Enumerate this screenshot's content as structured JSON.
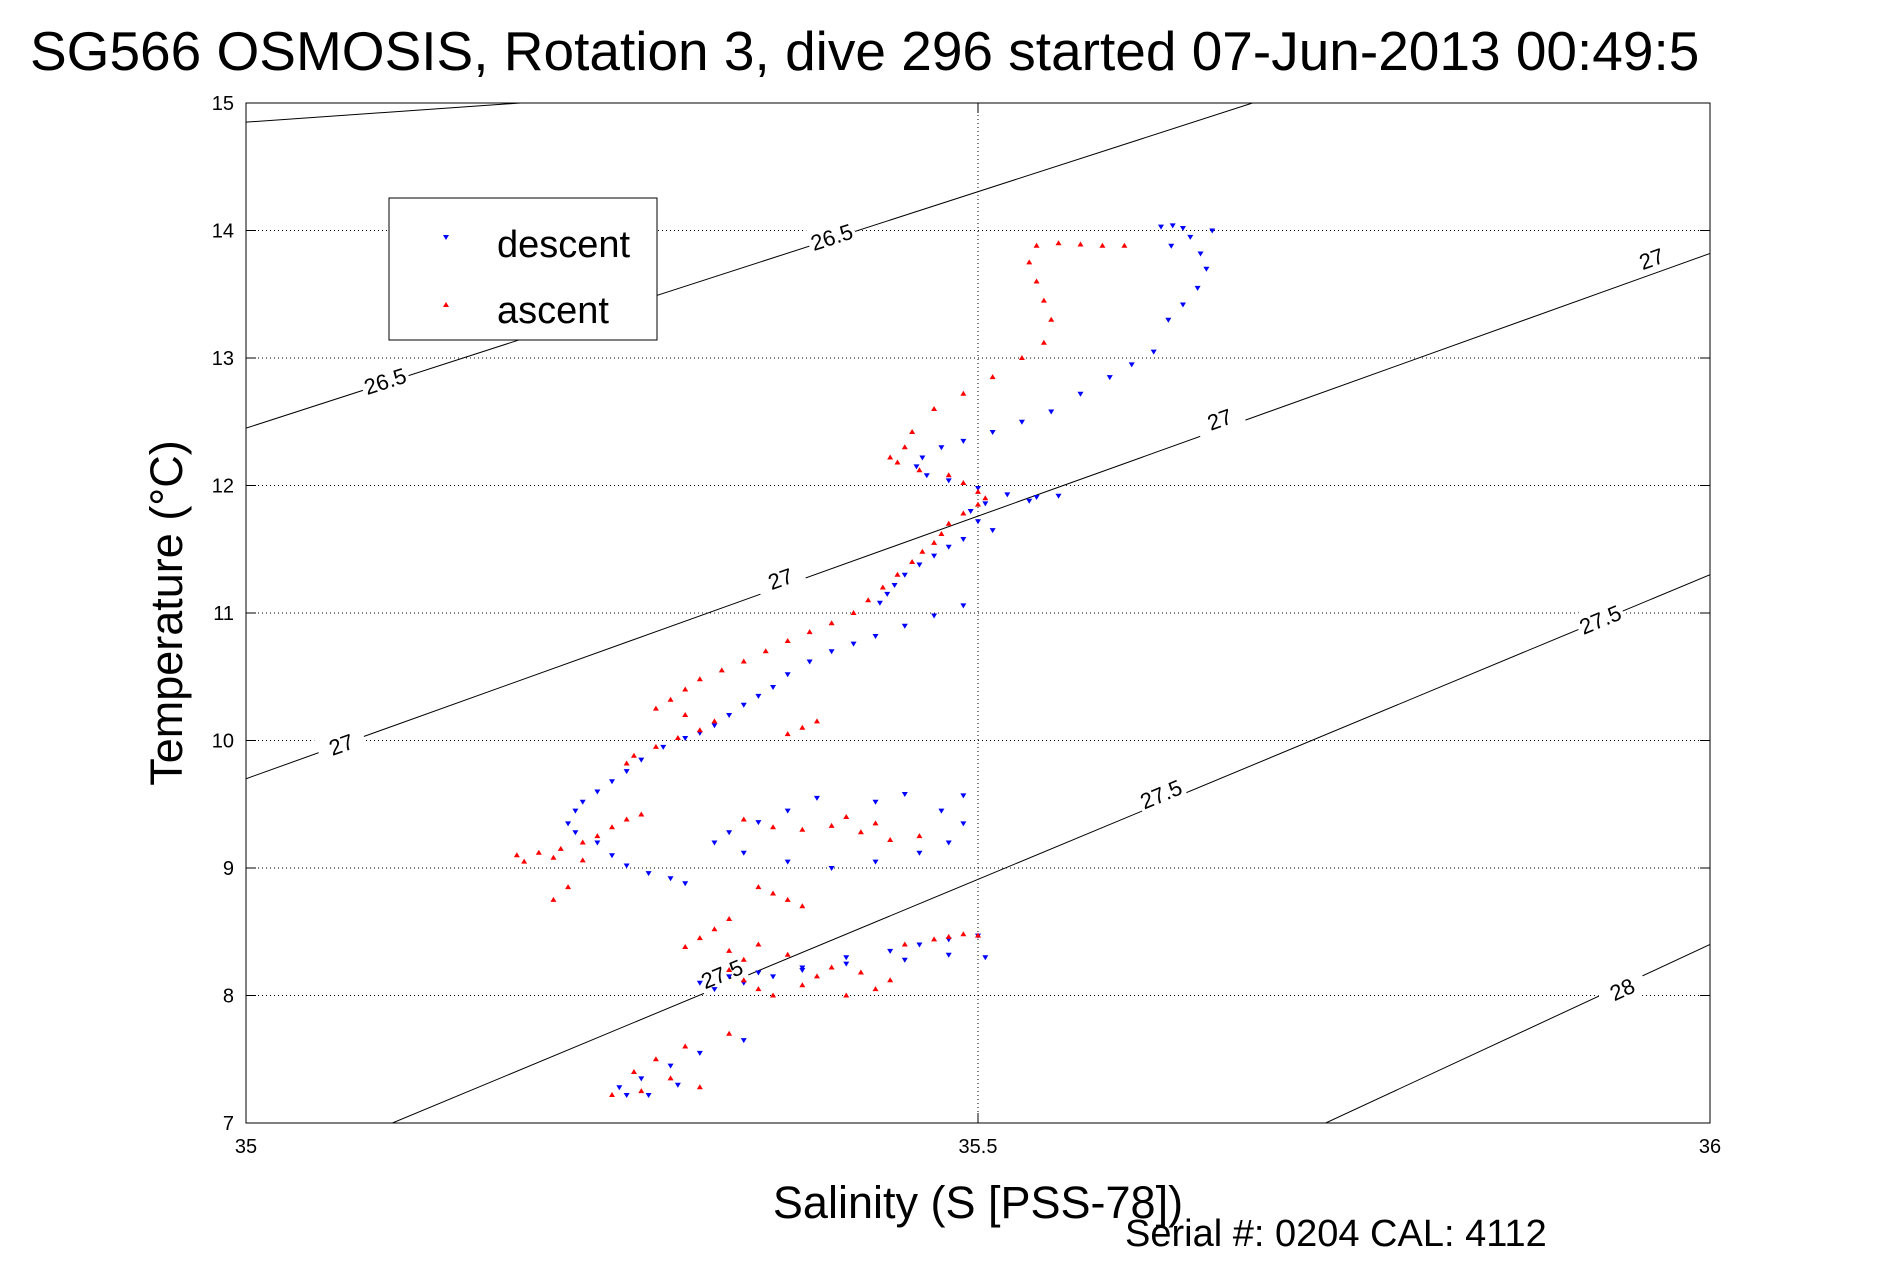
{
  "chart_data": {
    "type": "scatter",
    "title": "SG566 OSMOSIS, Rotation 3, dive 296 started 07-Jun-2013 00:49:5",
    "xlabel": "Salinity (S [PSS-78])",
    "ylabel": "Temperature (°C)",
    "footer": "Serial #: 0204  CAL: 4112",
    "xlim": [
      35,
      36
    ],
    "ylim": [
      7,
      15
    ],
    "xticks": [
      {
        "value": 35,
        "label": "35"
      },
      {
        "value": 35.5,
        "label": "35.5"
      },
      {
        "value": 36,
        "label": "36"
      }
    ],
    "yticks": [
      {
        "value": 7,
        "label": "7"
      },
      {
        "value": 8,
        "label": "8"
      },
      {
        "value": 9,
        "label": "9"
      },
      {
        "value": 10,
        "label": "10"
      },
      {
        "value": 11,
        "label": "11"
      },
      {
        "value": 12,
        "label": "12"
      },
      {
        "value": 13,
        "label": "13"
      },
      {
        "value": 14,
        "label": "14"
      },
      {
        "value": 15,
        "label": "15"
      }
    ],
    "grid": true,
    "legend_position": "top-left",
    "colors": {
      "descent": "#0000ff",
      "ascent": "#ff0000",
      "contour": "#000000"
    },
    "density_contours": [
      {
        "level": "26.5",
        "points": [
          [
            35,
            14.85
          ],
          [
            35.1875,
            15
          ]
        ],
        "label_at": []
      },
      {
        "level": "26.5",
        "points": [
          [
            35,
            12.45
          ],
          [
            35.6875,
            15
          ]
        ],
        "label_at": [
          [
            35.095,
            12.82
          ],
          [
            35.4,
            13.95
          ]
        ]
      },
      {
        "level": "27",
        "points": [
          [
            35,
            9.7
          ],
          [
            36,
            13.82
          ]
        ],
        "label_at": [
          [
            35.065,
            9.97
          ],
          [
            35.365,
            11.27
          ],
          [
            35.665,
            12.52
          ],
          [
            35.96,
            13.78
          ]
        ]
      },
      {
        "level": "27.5",
        "points": [
          [
            35.1,
            7
          ],
          [
            36,
            11.3
          ]
        ],
        "label_at": [
          [
            35.325,
            8.17
          ],
          [
            35.625,
            9.58
          ],
          [
            35.925,
            10.95
          ]
        ]
      },
      {
        "level": "28",
        "points": [
          [
            35.7375,
            7
          ],
          [
            36,
            8.4
          ]
        ],
        "label_at": [
          [
            35.94,
            8.05
          ]
        ]
      }
    ],
    "series": [
      {
        "name": "descent",
        "marker": "triangle-down",
        "color": "#0000ff",
        "points": [
          [
            35.625,
            14.03
          ],
          [
            35.633,
            14.04
          ],
          [
            35.64,
            14.02
          ],
          [
            35.66,
            14.0
          ],
          [
            35.645,
            13.95
          ],
          [
            35.632,
            13.88
          ],
          [
            35.652,
            13.82
          ],
          [
            35.656,
            13.7
          ],
          [
            35.65,
            13.55
          ],
          [
            35.64,
            13.42
          ],
          [
            35.63,
            13.3
          ],
          [
            35.62,
            13.05
          ],
          [
            35.605,
            12.95
          ],
          [
            35.59,
            12.85
          ],
          [
            35.57,
            12.72
          ],
          [
            35.55,
            12.58
          ],
          [
            35.53,
            12.5
          ],
          [
            35.51,
            12.42
          ],
          [
            35.49,
            12.35
          ],
          [
            35.475,
            12.3
          ],
          [
            35.462,
            12.22
          ],
          [
            35.458,
            12.15
          ],
          [
            35.465,
            12.08
          ],
          [
            35.48,
            12.04
          ],
          [
            35.5,
            11.98
          ],
          [
            35.52,
            11.93
          ],
          [
            35.54,
            11.91
          ],
          [
            35.555,
            11.92
          ],
          [
            35.535,
            11.88
          ],
          [
            35.505,
            11.86
          ],
          [
            35.495,
            11.8
          ],
          [
            35.5,
            11.72
          ],
          [
            35.51,
            11.65
          ],
          [
            35.49,
            11.58
          ],
          [
            35.48,
            11.52
          ],
          [
            35.47,
            11.45
          ],
          [
            35.46,
            11.38
          ],
          [
            35.45,
            11.3
          ],
          [
            35.443,
            11.22
          ],
          [
            35.438,
            11.15
          ],
          [
            35.433,
            11.08
          ],
          [
            35.49,
            11.06
          ],
          [
            35.47,
            10.98
          ],
          [
            35.45,
            10.9
          ],
          [
            35.43,
            10.82
          ],
          [
            35.415,
            10.76
          ],
          [
            35.4,
            10.7
          ],
          [
            35.385,
            10.62
          ],
          [
            35.37,
            10.52
          ],
          [
            35.36,
            10.42
          ],
          [
            35.35,
            10.35
          ],
          [
            35.34,
            10.28
          ],
          [
            35.33,
            10.2
          ],
          [
            35.32,
            10.12
          ],
          [
            35.31,
            10.06
          ],
          [
            35.3,
            10.02
          ],
          [
            35.285,
            9.95
          ],
          [
            35.27,
            9.85
          ],
          [
            35.26,
            9.76
          ],
          [
            35.25,
            9.68
          ],
          [
            35.24,
            9.6
          ],
          [
            35.23,
            9.52
          ],
          [
            35.225,
            9.45
          ],
          [
            35.22,
            9.35
          ],
          [
            35.225,
            9.28
          ],
          [
            35.24,
            9.2
          ],
          [
            35.25,
            9.1
          ],
          [
            35.26,
            9.02
          ],
          [
            35.275,
            8.96
          ],
          [
            35.29,
            8.92
          ],
          [
            35.3,
            8.88
          ],
          [
            35.39,
            9.55
          ],
          [
            35.37,
            9.45
          ],
          [
            35.35,
            9.36
          ],
          [
            35.33,
            9.28
          ],
          [
            35.32,
            9.2
          ],
          [
            35.34,
            9.12
          ],
          [
            35.37,
            9.05
          ],
          [
            35.4,
            9.0
          ],
          [
            35.43,
            9.05
          ],
          [
            35.46,
            9.12
          ],
          [
            35.48,
            9.2
          ],
          [
            35.49,
            9.35
          ],
          [
            35.475,
            9.45
          ],
          [
            35.43,
            9.52
          ],
          [
            35.45,
            9.58
          ],
          [
            35.49,
            9.57
          ],
          [
            35.5,
            8.47
          ],
          [
            35.48,
            8.44
          ],
          [
            35.46,
            8.4
          ],
          [
            35.44,
            8.35
          ],
          [
            35.41,
            8.3
          ],
          [
            35.38,
            8.22
          ],
          [
            35.36,
            8.15
          ],
          [
            35.34,
            8.1
          ],
          [
            35.32,
            8.05
          ],
          [
            35.31,
            8.1
          ],
          [
            35.33,
            8.15
          ],
          [
            35.35,
            8.18
          ],
          [
            35.38,
            8.2
          ],
          [
            35.41,
            8.25
          ],
          [
            35.45,
            8.28
          ],
          [
            35.48,
            8.32
          ],
          [
            35.505,
            8.3
          ],
          [
            35.34,
            7.65
          ],
          [
            35.31,
            7.55
          ],
          [
            35.29,
            7.45
          ],
          [
            35.27,
            7.35
          ],
          [
            35.255,
            7.28
          ],
          [
            35.26,
            7.22
          ],
          [
            35.275,
            7.22
          ],
          [
            35.295,
            7.3
          ]
        ]
      },
      {
        "name": "ascent",
        "marker": "triangle-up",
        "color": "#ff0000",
        "points": [
          [
            35.6,
            13.88
          ],
          [
            35.585,
            13.88
          ],
          [
            35.57,
            13.89
          ],
          [
            35.555,
            13.9
          ],
          [
            35.54,
            13.88
          ],
          [
            35.535,
            13.75
          ],
          [
            35.54,
            13.6
          ],
          [
            35.545,
            13.45
          ],
          [
            35.55,
            13.3
          ],
          [
            35.545,
            13.12
          ],
          [
            35.53,
            13.0
          ],
          [
            35.51,
            12.85
          ],
          [
            35.49,
            12.72
          ],
          [
            35.47,
            12.6
          ],
          [
            35.455,
            12.42
          ],
          [
            35.45,
            12.3
          ],
          [
            35.44,
            12.22
          ],
          [
            35.445,
            12.18
          ],
          [
            35.46,
            12.12
          ],
          [
            35.48,
            12.08
          ],
          [
            35.49,
            12.02
          ],
          [
            35.5,
            11.95
          ],
          [
            35.505,
            11.9
          ],
          [
            35.5,
            11.85
          ],
          [
            35.49,
            11.78
          ],
          [
            35.48,
            11.7
          ],
          [
            35.475,
            11.62
          ],
          [
            35.47,
            11.55
          ],
          [
            35.462,
            11.48
          ],
          [
            35.455,
            11.4
          ],
          [
            35.445,
            11.3
          ],
          [
            35.435,
            11.2
          ],
          [
            35.425,
            11.1
          ],
          [
            35.415,
            11.0
          ],
          [
            35.4,
            10.92
          ],
          [
            35.385,
            10.85
          ],
          [
            35.37,
            10.78
          ],
          [
            35.355,
            10.7
          ],
          [
            35.34,
            10.62
          ],
          [
            35.325,
            10.55
          ],
          [
            35.31,
            10.48
          ],
          [
            35.3,
            10.4
          ],
          [
            35.29,
            10.32
          ],
          [
            35.28,
            10.25
          ],
          [
            35.3,
            10.2
          ],
          [
            35.32,
            10.15
          ],
          [
            35.31,
            10.08
          ],
          [
            35.295,
            10.02
          ],
          [
            35.28,
            9.95
          ],
          [
            35.265,
            9.88
          ],
          [
            35.26,
            9.82
          ],
          [
            35.37,
            10.05
          ],
          [
            35.38,
            10.1
          ],
          [
            35.39,
            10.15
          ],
          [
            35.27,
            9.42
          ],
          [
            35.26,
            9.38
          ],
          [
            35.25,
            9.32
          ],
          [
            35.24,
            9.25
          ],
          [
            35.23,
            9.2
          ],
          [
            35.215,
            9.15
          ],
          [
            35.2,
            9.12
          ],
          [
            35.185,
            9.1
          ],
          [
            35.19,
            9.05
          ],
          [
            35.21,
            9.08
          ],
          [
            35.23,
            9.06
          ],
          [
            35.22,
            8.85
          ],
          [
            35.21,
            8.75
          ],
          [
            35.34,
            9.38
          ],
          [
            35.36,
            9.32
          ],
          [
            35.38,
            9.3
          ],
          [
            35.4,
            9.33
          ],
          [
            35.42,
            9.28
          ],
          [
            35.44,
            9.22
          ],
          [
            35.46,
            9.25
          ],
          [
            35.43,
            9.35
          ],
          [
            35.41,
            9.4
          ],
          [
            35.35,
            8.85
          ],
          [
            35.36,
            8.8
          ],
          [
            35.37,
            8.75
          ],
          [
            35.38,
            8.7
          ],
          [
            35.33,
            8.6
          ],
          [
            35.32,
            8.52
          ],
          [
            35.31,
            8.45
          ],
          [
            35.3,
            8.38
          ],
          [
            35.33,
            8.35
          ],
          [
            35.35,
            8.4
          ],
          [
            35.37,
            8.32
          ],
          [
            35.34,
            8.28
          ],
          [
            35.33,
            8.2
          ],
          [
            35.34,
            8.12
          ],
          [
            35.35,
            8.05
          ],
          [
            35.36,
            8.0
          ],
          [
            35.38,
            8.08
          ],
          [
            35.39,
            8.15
          ],
          [
            35.4,
            8.22
          ],
          [
            35.42,
            8.18
          ],
          [
            35.44,
            8.12
          ],
          [
            35.43,
            8.05
          ],
          [
            35.41,
            8.0
          ],
          [
            35.48,
            8.46
          ],
          [
            35.49,
            8.48
          ],
          [
            35.5,
            8.47
          ],
          [
            35.47,
            8.44
          ],
          [
            35.45,
            8.4
          ],
          [
            35.33,
            7.7
          ],
          [
            35.3,
            7.6
          ],
          [
            35.28,
            7.5
          ],
          [
            35.265,
            7.4
          ],
          [
            35.29,
            7.35
          ],
          [
            35.27,
            7.25
          ],
          [
            35.25,
            7.22
          ],
          [
            35.31,
            7.28
          ]
        ]
      }
    ]
  }
}
